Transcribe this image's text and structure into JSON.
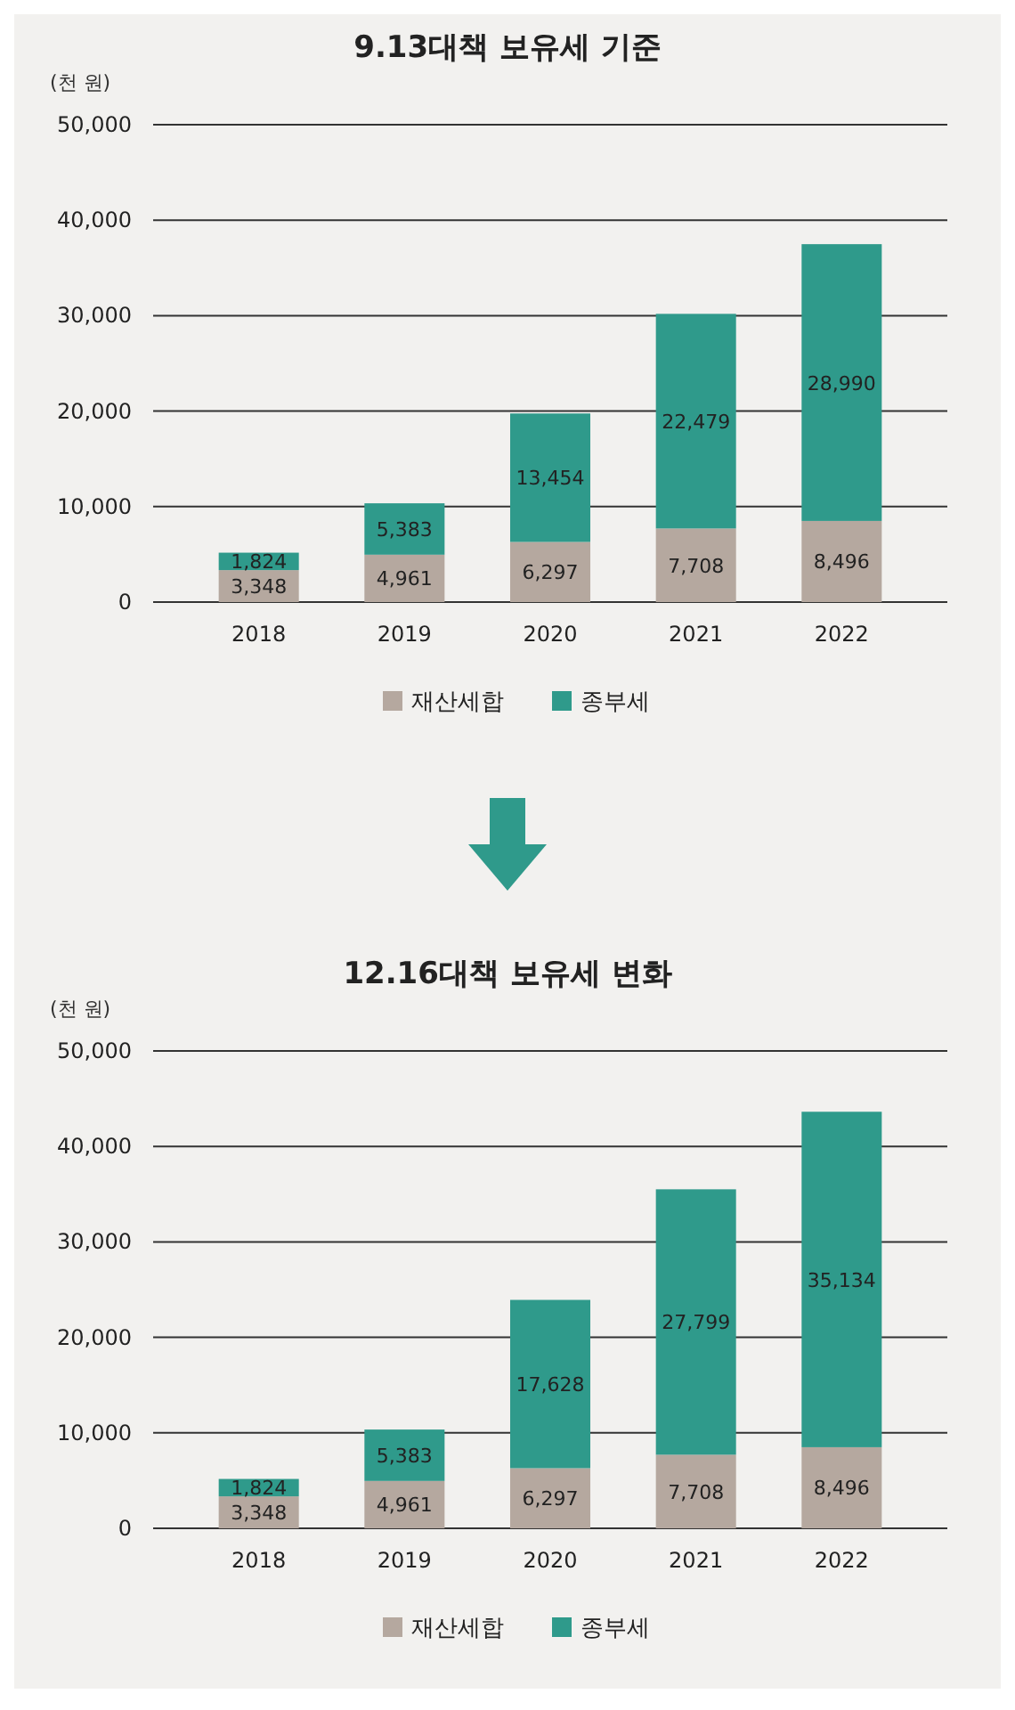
{
  "chart_data": [
    {
      "type": "bar",
      "title": "9.13대책 보유세 기준",
      "ylabel": "(천 원)",
      "categories": [
        "2018",
        "2019",
        "2020",
        "2021",
        "2022"
      ],
      "stacked": true,
      "series": [
        {
          "name": "재산세합",
          "color": "#b5a89f",
          "values": [
            3348,
            4961,
            6297,
            7708,
            8496
          ],
          "value_labels": [
            "3,348",
            "4,961",
            "6,297",
            "7,708",
            "8,496"
          ]
        },
        {
          "name": "종부세",
          "color": "#2f9a8b",
          "values": [
            1824,
            5383,
            13454,
            22479,
            28990
          ],
          "value_labels": [
            "1,824",
            "5,383",
            "13,454",
            "22,479",
            "28,990"
          ]
        }
      ],
      "ylim": [
        0,
        50000
      ],
      "yticks": [
        0,
        {
          "value": 10000,
          "label": "10,000"
        },
        {
          "value": 20000,
          "label": "20,000"
        },
        {
          "value": 30000,
          "label": "30,000"
        },
        {
          "value": 40000,
          "label": "40,000"
        },
        {
          "value": 50000,
          "label": "50,000"
        }
      ],
      "grid": "y",
      "legend": "bottom"
    },
    {
      "type": "bar",
      "title": "12.16대책 보유세 변화",
      "ylabel": "(천 원)",
      "categories": [
        "2018",
        "2019",
        "2020",
        "2021",
        "2022"
      ],
      "stacked": true,
      "series": [
        {
          "name": "재산세합",
          "color": "#b5a89f",
          "values": [
            3348,
            4961,
            6297,
            7708,
            8496
          ],
          "value_labels": [
            "3,348",
            "4,961",
            "6,297",
            "7,708",
            "8,496"
          ]
        },
        {
          "name": "종부세",
          "color": "#2f9a8b",
          "values": [
            1824,
            5383,
            17628,
            27799,
            35134
          ],
          "value_labels": [
            "1,824",
            "5,383",
            "17,628",
            "27,799",
            "35,134"
          ]
        }
      ],
      "ylim": [
        0,
        50000
      ],
      "yticks": [
        0,
        {
          "value": 10000,
          "label": "10,000"
        },
        {
          "value": 20000,
          "label": "20,000"
        },
        {
          "value": 30000,
          "label": "30,000"
        },
        {
          "value": 40000,
          "label": "40,000"
        },
        {
          "value": 50000,
          "label": "50,000"
        }
      ],
      "grid": "y",
      "legend": "bottom"
    }
  ]
}
